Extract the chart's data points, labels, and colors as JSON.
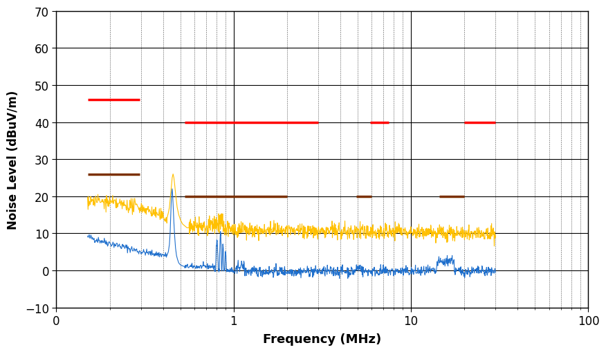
{
  "xlabel": "Frequency (MHz)",
  "ylabel": "Noise Level (dBuV/m)",
  "xlim": [
    0.1,
    100
  ],
  "ylim": [
    -10,
    70
  ],
  "yticks": [
    -10,
    0,
    10,
    20,
    30,
    40,
    50,
    60,
    70
  ],
  "xticks_major": [
    0.1,
    1,
    10,
    100
  ],
  "xtick_labels": [
    "0",
    "1",
    "10",
    "100"
  ],
  "background_color": "#ffffff",
  "major_grid_color": "#000000",
  "major_grid_lw": 0.8,
  "minor_grid_color": "#555555",
  "minor_grid_lw": 0.4,
  "minor_grid_ls": "--",
  "red_limits": [
    {
      "x0": 0.15,
      "x1": 0.295,
      "y": 46
    },
    {
      "x0": 0.53,
      "x1": 3.0,
      "y": 40
    },
    {
      "x0": 5.9,
      "x1": 7.5,
      "y": 40
    },
    {
      "x0": 20.0,
      "x1": 30.0,
      "y": 40
    }
  ],
  "brown_limits": [
    {
      "x0": 0.15,
      "x1": 0.295,
      "y": 26
    },
    {
      "x0": 0.53,
      "x1": 2.0,
      "y": 20
    },
    {
      "x0": 4.9,
      "x1": 6.0,
      "y": 20
    },
    {
      "x0": 14.5,
      "x1": 20.0,
      "y": 20
    }
  ],
  "line_color_blue": "#1F6FCC",
  "line_color_yellow": "#FFC000",
  "line_color_red": "#FF0000",
  "line_color_brown": "#7B3000",
  "label_fontsize": 13,
  "tick_labelsize": 12
}
